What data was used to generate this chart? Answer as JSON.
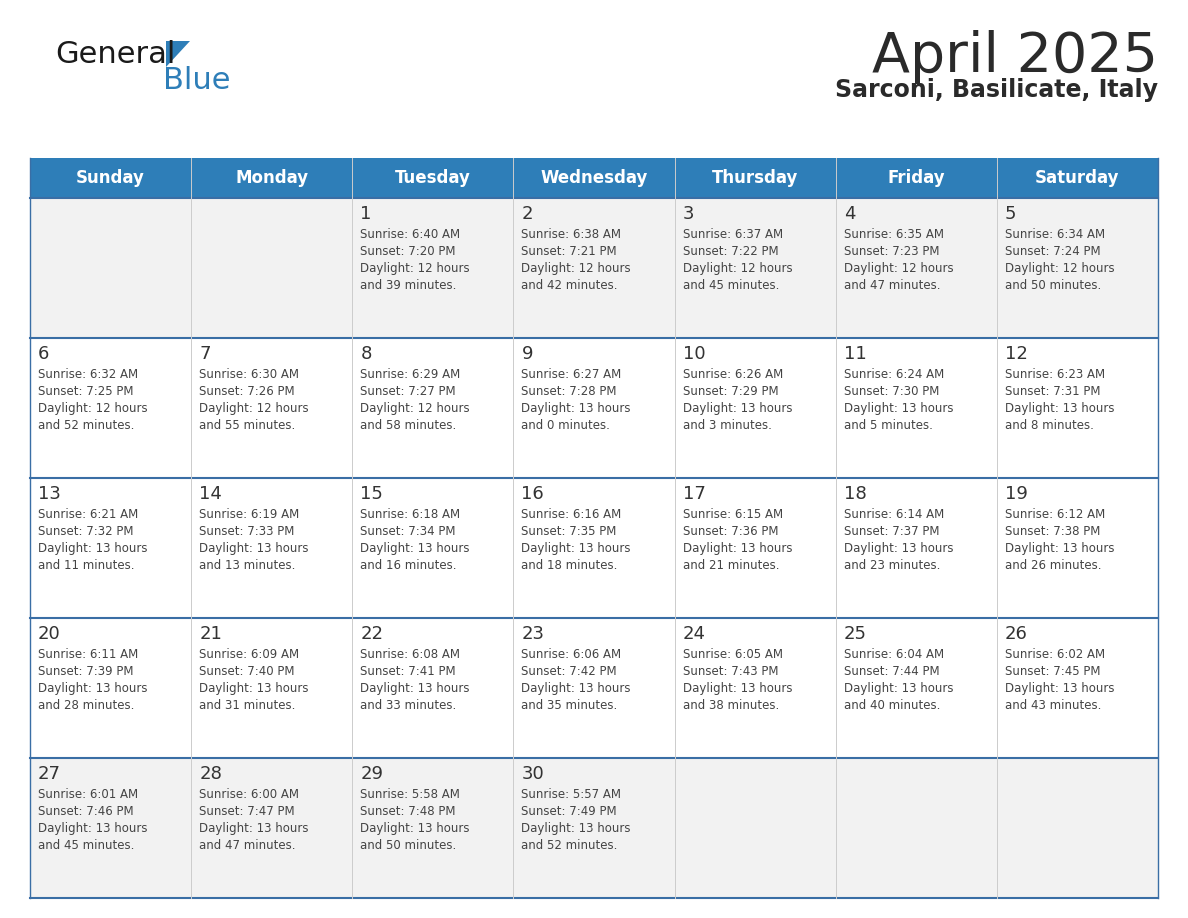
{
  "title": "April 2025",
  "subtitle": "Sarconi, Basilicate, Italy",
  "days_of_week": [
    "Sunday",
    "Monday",
    "Tuesday",
    "Wednesday",
    "Thursday",
    "Friday",
    "Saturday"
  ],
  "header_bg": "#2E7EB8",
  "header_text": "#FFFFFF",
  "row_bg_gray": "#F2F2F2",
  "row_bg_white": "#FFFFFF",
  "row_backgrounds": [
    "#F2F2F2",
    "#FFFFFF",
    "#FFFFFF",
    "#FFFFFF",
    "#F2F2F2"
  ],
  "cell_border_color": "#3A6EA5",
  "day_number_color": "#333333",
  "info_text_color": "#444444",
  "title_color": "#2a2a2a",
  "subtitle_color": "#2a2a2a",
  "logo_general_color": "#1a1a1a",
  "logo_blue_color": "#2E7EB8",
  "calendar_data": [
    [
      {
        "day": "",
        "sunrise": "",
        "sunset": "",
        "daylight": ""
      },
      {
        "day": "",
        "sunrise": "",
        "sunset": "",
        "daylight": ""
      },
      {
        "day": "1",
        "sunrise": "6:40 AM",
        "sunset": "7:20 PM",
        "daylight": "12 hours and 39 minutes."
      },
      {
        "day": "2",
        "sunrise": "6:38 AM",
        "sunset": "7:21 PM",
        "daylight": "12 hours and 42 minutes."
      },
      {
        "day": "3",
        "sunrise": "6:37 AM",
        "sunset": "7:22 PM",
        "daylight": "12 hours and 45 minutes."
      },
      {
        "day": "4",
        "sunrise": "6:35 AM",
        "sunset": "7:23 PM",
        "daylight": "12 hours and 47 minutes."
      },
      {
        "day": "5",
        "sunrise": "6:34 AM",
        "sunset": "7:24 PM",
        "daylight": "12 hours and 50 minutes."
      }
    ],
    [
      {
        "day": "6",
        "sunrise": "6:32 AM",
        "sunset": "7:25 PM",
        "daylight": "12 hours and 52 minutes."
      },
      {
        "day": "7",
        "sunrise": "6:30 AM",
        "sunset": "7:26 PM",
        "daylight": "12 hours and 55 minutes."
      },
      {
        "day": "8",
        "sunrise": "6:29 AM",
        "sunset": "7:27 PM",
        "daylight": "12 hours and 58 minutes."
      },
      {
        "day": "9",
        "sunrise": "6:27 AM",
        "sunset": "7:28 PM",
        "daylight": "13 hours and 0 minutes."
      },
      {
        "day": "10",
        "sunrise": "6:26 AM",
        "sunset": "7:29 PM",
        "daylight": "13 hours and 3 minutes."
      },
      {
        "day": "11",
        "sunrise": "6:24 AM",
        "sunset": "7:30 PM",
        "daylight": "13 hours and 5 minutes."
      },
      {
        "day": "12",
        "sunrise": "6:23 AM",
        "sunset": "7:31 PM",
        "daylight": "13 hours and 8 minutes."
      }
    ],
    [
      {
        "day": "13",
        "sunrise": "6:21 AM",
        "sunset": "7:32 PM",
        "daylight": "13 hours and 11 minutes."
      },
      {
        "day": "14",
        "sunrise": "6:19 AM",
        "sunset": "7:33 PM",
        "daylight": "13 hours and 13 minutes."
      },
      {
        "day": "15",
        "sunrise": "6:18 AM",
        "sunset": "7:34 PM",
        "daylight": "13 hours and 16 minutes."
      },
      {
        "day": "16",
        "sunrise": "6:16 AM",
        "sunset": "7:35 PM",
        "daylight": "13 hours and 18 minutes."
      },
      {
        "day": "17",
        "sunrise": "6:15 AM",
        "sunset": "7:36 PM",
        "daylight": "13 hours and 21 minutes."
      },
      {
        "day": "18",
        "sunrise": "6:14 AM",
        "sunset": "7:37 PM",
        "daylight": "13 hours and 23 minutes."
      },
      {
        "day": "19",
        "sunrise": "6:12 AM",
        "sunset": "7:38 PM",
        "daylight": "13 hours and 26 minutes."
      }
    ],
    [
      {
        "day": "20",
        "sunrise": "6:11 AM",
        "sunset": "7:39 PM",
        "daylight": "13 hours and 28 minutes."
      },
      {
        "day": "21",
        "sunrise": "6:09 AM",
        "sunset": "7:40 PM",
        "daylight": "13 hours and 31 minutes."
      },
      {
        "day": "22",
        "sunrise": "6:08 AM",
        "sunset": "7:41 PM",
        "daylight": "13 hours and 33 minutes."
      },
      {
        "day": "23",
        "sunrise": "6:06 AM",
        "sunset": "7:42 PM",
        "daylight": "13 hours and 35 minutes."
      },
      {
        "day": "24",
        "sunrise": "6:05 AM",
        "sunset": "7:43 PM",
        "daylight": "13 hours and 38 minutes."
      },
      {
        "day": "25",
        "sunrise": "6:04 AM",
        "sunset": "7:44 PM",
        "daylight": "13 hours and 40 minutes."
      },
      {
        "day": "26",
        "sunrise": "6:02 AM",
        "sunset": "7:45 PM",
        "daylight": "13 hours and 43 minutes."
      }
    ],
    [
      {
        "day": "27",
        "sunrise": "6:01 AM",
        "sunset": "7:46 PM",
        "daylight": "13 hours and 45 minutes."
      },
      {
        "day": "28",
        "sunrise": "6:00 AM",
        "sunset": "7:47 PM",
        "daylight": "13 hours and 47 minutes."
      },
      {
        "day": "29",
        "sunrise": "5:58 AM",
        "sunset": "7:48 PM",
        "daylight": "13 hours and 50 minutes."
      },
      {
        "day": "30",
        "sunrise": "5:57 AM",
        "sunset": "7:49 PM",
        "daylight": "13 hours and 52 minutes."
      },
      {
        "day": "",
        "sunrise": "",
        "sunset": "",
        "daylight": ""
      },
      {
        "day": "",
        "sunrise": "",
        "sunset": "",
        "daylight": ""
      },
      {
        "day": "",
        "sunrise": "",
        "sunset": "",
        "daylight": ""
      }
    ]
  ]
}
